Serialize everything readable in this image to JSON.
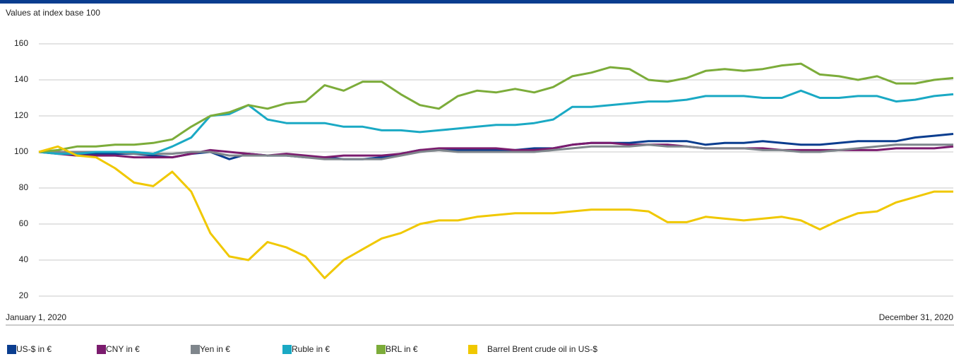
{
  "chart_data": {
    "type": "line",
    "subtitle": "Values at index base 100",
    "categories": [
      "January 1, 2020",
      null,
      null,
      null,
      null,
      null,
      null,
      null,
      null,
      null,
      null,
      null,
      null,
      null,
      null,
      null,
      null,
      null,
      null,
      null,
      null,
      null,
      null,
      null,
      null,
      null,
      null,
      null,
      null,
      null,
      null,
      null,
      null,
      null,
      null,
      null,
      null,
      null,
      null,
      null,
      null,
      null,
      null,
      null,
      null,
      null,
      null,
      null,
      "December 31, 2020"
    ],
    "ylim": [
      20,
      160
    ],
    "yticks": [
      20,
      40,
      60,
      80,
      100,
      120,
      140,
      160
    ],
    "grid": true,
    "series": [
      {
        "name": "US-$ in €",
        "color": "#0a3d8f",
        "values": [
          100,
          100,
          99,
          99,
          99,
          99,
          98,
          97,
          99,
          100,
          96,
          99,
          98,
          98,
          97,
          97,
          96,
          96,
          97,
          99,
          101,
          101,
          101,
          101,
          101,
          101,
          102,
          102,
          104,
          105,
          105,
          105,
          106,
          106,
          106,
          104,
          105,
          105,
          106,
          105,
          104,
          104,
          105,
          106,
          106,
          106,
          108,
          109,
          110
        ]
      },
      {
        "name": "CNY in €",
        "color": "#7b1c6e",
        "values": [
          100,
          99,
          98,
          98,
          98,
          97,
          97,
          97,
          99,
          101,
          100,
          99,
          98,
          99,
          98,
          97,
          98,
          98,
          98,
          99,
          101,
          102,
          102,
          102,
          102,
          101,
          101,
          102,
          104,
          105,
          105,
          104,
          104,
          104,
          103,
          102,
          102,
          102,
          102,
          101,
          101,
          101,
          101,
          101,
          101,
          102,
          102,
          102,
          103
        ]
      },
      {
        "name": "Yen in €",
        "color": "#7f868c",
        "values": [
          100,
          100,
          100,
          100,
          100,
          99,
          99,
          99,
          100,
          100,
          98,
          98,
          98,
          98,
          97,
          96,
          96,
          96,
          96,
          98,
          100,
          101,
          100,
          100,
          100,
          100,
          100,
          101,
          102,
          103,
          103,
          103,
          104,
          103,
          103,
          102,
          102,
          102,
          101,
          101,
          100,
          100,
          101,
          102,
          103,
          104,
          104,
          104,
          104
        ]
      },
      {
        "name": "Ruble in €",
        "color": "#1aa9c4",
        "values": [
          100,
          99,
          99,
          100,
          100,
          100,
          99,
          103,
          108,
          120,
          121,
          126,
          118,
          116,
          116,
          116,
          114,
          114,
          112,
          112,
          111,
          112,
          113,
          114,
          115,
          115,
          116,
          118,
          125,
          125,
          126,
          127,
          128,
          128,
          129,
          131,
          131,
          131,
          130,
          130,
          134,
          130,
          130,
          131,
          131,
          128,
          129,
          131,
          132
        ]
      },
      {
        "name": "BRL in €",
        "color": "#7cac3a",
        "values": [
          100,
          101,
          103,
          103,
          104,
          104,
          105,
          107,
          114,
          120,
          122,
          126,
          124,
          127,
          128,
          137,
          134,
          139,
          139,
          132,
          126,
          124,
          131,
          134,
          133,
          135,
          133,
          136,
          142,
          144,
          147,
          146,
          140,
          139,
          141,
          145,
          146,
          145,
          146,
          148,
          149,
          143,
          142,
          140,
          142,
          138,
          138,
          140,
          141
        ]
      },
      {
        "name": "Barrel Brent crude oil in US-$",
        "color": "#f0c800",
        "values": [
          100,
          103,
          98,
          97,
          91,
          83,
          81,
          89,
          78,
          55,
          42,
          40,
          50,
          47,
          42,
          30,
          40,
          46,
          52,
          55,
          60,
          62,
          62,
          64,
          65,
          66,
          66,
          66,
          67,
          68,
          68,
          68,
          67,
          61,
          61,
          64,
          63,
          62,
          63,
          64,
          62,
          57,
          62,
          66,
          67,
          72,
          75,
          78,
          78
        ]
      }
    ]
  }
}
